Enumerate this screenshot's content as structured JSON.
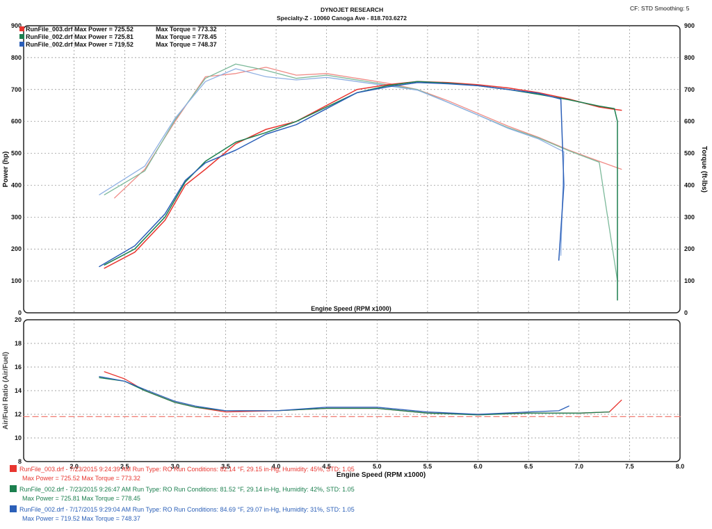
{
  "header": {
    "title": "DYNOJET RESEARCH",
    "subtitle": "Specialty-Z - 10060 Canoga Ave - 818.703.6272",
    "settings": "CF: STD  Smoothing: 5"
  },
  "top_legend": [
    {
      "file": "RunFile_003.drf",
      "power": "Max Power = 725.52",
      "torque": "Max Torque = 773.32",
      "color": "#e8352f"
    },
    {
      "file": "RunFile_002.drf",
      "power": "Max Power = 725.81",
      "torque": "Max Torque = 778.45",
      "color": "#1b7f4e"
    },
    {
      "file": "RunFile_002.drf",
      "power": "Max Power = 719.52",
      "torque": "Max Torque = 748.37",
      "color": "#2b5fb8"
    }
  ],
  "bottom_legend": [
    {
      "line1": "RunFile_003.drf - 7/23/2015 9:24:39 AM  Run Type: RO  Run Conditions: 82.14 °F, 29.15 in-Hg,  Humidity:  45%,  STD: 1.05",
      "line2": "Max Power = 725.52  Max Torque = 773.32",
      "color": "#e8352f"
    },
    {
      "line1": "RunFile_002.drf - 7/23/2015 9:26:47 AM  Run Type: RO  Run Conditions: 81.52 °F, 29.14 in-Hg,  Humidity:  42%,  STD: 1.05",
      "line2": "Max Power = 725.81  Max Torque = 778.45",
      "color": "#1b7f4e"
    },
    {
      "line1": "RunFile_002.drf - 7/17/2015 9:29:04 AM  Run Type: RO  Run Conditions: 84.69 °F, 29.07 in-Hg,  Humidity:  31%,  STD: 1.05",
      "line2": "Max Power = 719.52  Max Torque = 748.37",
      "color": "#2b5fb8"
    }
  ],
  "chart_data": [
    {
      "type": "line",
      "name": "power-torque",
      "xlabel": "Engine Speed (RPM x1000)",
      "ylabel": "Power (hp)",
      "y2label": "Torque (ft-lbs)",
      "xlim": [
        1.5,
        8.0
      ],
      "ylim": [
        0,
        900
      ],
      "y2lim": [
        0,
        900
      ],
      "yticks": [
        0,
        100,
        200,
        300,
        400,
        500,
        600,
        700,
        800,
        900
      ],
      "grid": true,
      "series": [
        {
          "name": "RunFile_003.drf Power",
          "color": "#e8352f",
          "axis": "left",
          "x": [
            2.3,
            2.6,
            2.9,
            3.1,
            3.3,
            3.6,
            3.9,
            4.2,
            4.5,
            4.8,
            5.1,
            5.4,
            5.7,
            6.0,
            6.3,
            6.6,
            6.9,
            7.2,
            7.3,
            7.42
          ],
          "y": [
            140,
            190,
            290,
            400,
            450,
            530,
            575,
            600,
            650,
            700,
            715,
            725,
            722,
            715,
            705,
            690,
            670,
            645,
            640,
            635
          ]
        },
        {
          "name": "RunFile_002.drf Power",
          "color": "#1b7f4e",
          "axis": "left",
          "x": [
            2.3,
            2.6,
            2.9,
            3.1,
            3.3,
            3.6,
            3.9,
            4.2,
            4.5,
            4.8,
            5.1,
            5.4,
            5.7,
            6.0,
            6.3,
            6.6,
            6.9,
            7.2,
            7.35,
            7.38,
            7.38
          ],
          "y": [
            150,
            200,
            300,
            410,
            475,
            535,
            565,
            600,
            645,
            690,
            712,
            725,
            720,
            712,
            700,
            685,
            668,
            648,
            640,
            600,
            40
          ]
        },
        {
          "name": "RunFile_002.drf Power (7/17)",
          "color": "#2b5fb8",
          "axis": "left",
          "x": [
            2.25,
            2.6,
            2.9,
            3.1,
            3.3,
            3.6,
            3.9,
            4.2,
            4.5,
            4.8,
            5.1,
            5.4,
            5.7,
            6.0,
            6.3,
            6.6,
            6.82,
            6.85,
            6.8
          ],
          "y": [
            145,
            210,
            310,
            415,
            470,
            510,
            560,
            590,
            640,
            690,
            708,
            722,
            718,
            712,
            700,
            688,
            670,
            400,
            165
          ]
        },
        {
          "name": "RunFile_003.drf Torque",
          "color": "#f08a85",
          "axis": "right",
          "x": [
            2.4,
            2.7,
            3.0,
            3.3,
            3.6,
            3.9,
            4.2,
            4.5,
            4.8,
            5.1,
            5.4,
            5.7,
            6.0,
            6.3,
            6.6,
            6.9,
            7.2,
            7.42
          ],
          "y": [
            360,
            450,
            600,
            740,
            750,
            770,
            745,
            750,
            735,
            720,
            700,
            665,
            625,
            585,
            550,
            510,
            475,
            450
          ]
        },
        {
          "name": "RunFile_002.drf Torque",
          "color": "#7cb99a",
          "axis": "right",
          "x": [
            2.3,
            2.7,
            3.0,
            3.3,
            3.6,
            3.9,
            4.2,
            4.5,
            4.8,
            5.1,
            5.4,
            5.7,
            6.0,
            6.3,
            6.6,
            6.9,
            7.2,
            7.38
          ],
          "y": [
            370,
            445,
            605,
            735,
            780,
            760,
            735,
            745,
            730,
            715,
            700,
            660,
            620,
            580,
            548,
            508,
            472,
            100
          ]
        },
        {
          "name": "RunFile_002.drf Torque (7/17)",
          "color": "#8fb0e3",
          "axis": "right",
          "x": [
            2.25,
            2.7,
            3.0,
            3.3,
            3.6,
            3.9,
            4.2,
            4.5,
            4.8,
            5.1,
            5.4,
            5.7,
            6.0,
            6.3,
            6.6,
            6.85,
            6.82
          ],
          "y": [
            370,
            460,
            610,
            725,
            765,
            740,
            730,
            738,
            725,
            712,
            698,
            660,
            620,
            578,
            545,
            505,
            180
          ]
        }
      ]
    },
    {
      "type": "line",
      "name": "air-fuel",
      "xlabel": "Engine Speed (RPM x1000)",
      "ylabel": "Air/Fuel Ratio (Air/Fuel)",
      "xlim": [
        1.5,
        8.0
      ],
      "ylim": [
        8,
        20
      ],
      "yticks": [
        8,
        10,
        12,
        14,
        16,
        18,
        20
      ],
      "xticks": [
        2.0,
        2.5,
        3.0,
        3.5,
        4.0,
        4.5,
        5.0,
        5.5,
        6.0,
        6.5,
        7.0,
        7.5,
        8.0
      ],
      "grid": true,
      "series": [
        {
          "name": "Reference 11.8",
          "color": "#f07a70",
          "dashed": true,
          "x": [
            1.5,
            8.0
          ],
          "y": [
            11.8,
            11.8
          ]
        },
        {
          "name": "RunFile_003.drf AFR",
          "color": "#e8352f",
          "x": [
            2.3,
            2.5,
            2.7,
            3.0,
            3.2,
            3.5,
            4.0,
            4.5,
            5.0,
            5.5,
            6.0,
            6.5,
            7.0,
            7.3,
            7.42
          ],
          "y": [
            15.6,
            15.0,
            14.0,
            13.0,
            12.6,
            12.2,
            12.3,
            12.5,
            12.5,
            12.1,
            12.0,
            12.1,
            12.1,
            12.2,
            13.2
          ]
        },
        {
          "name": "RunFile_002.drf AFR",
          "color": "#1b7f4e",
          "x": [
            2.25,
            2.5,
            2.7,
            3.0,
            3.2,
            3.5,
            4.0,
            4.5,
            5.0,
            5.5,
            6.0,
            6.5,
            7.0,
            7.3
          ],
          "y": [
            15.1,
            14.8,
            14.0,
            13.0,
            12.6,
            12.3,
            12.3,
            12.5,
            12.5,
            12.1,
            11.95,
            12.1,
            12.1,
            12.2
          ]
        },
        {
          "name": "RunFile_002.drf AFR (7/17)",
          "color": "#2b5fb8",
          "x": [
            2.25,
            2.5,
            2.7,
            3.0,
            3.2,
            3.5,
            4.0,
            4.5,
            5.0,
            5.5,
            6.0,
            6.5,
            6.8,
            6.9
          ],
          "y": [
            15.2,
            14.8,
            14.1,
            13.1,
            12.7,
            12.3,
            12.3,
            12.6,
            12.6,
            12.2,
            12.0,
            12.2,
            12.3,
            12.7
          ]
        }
      ]
    }
  ]
}
